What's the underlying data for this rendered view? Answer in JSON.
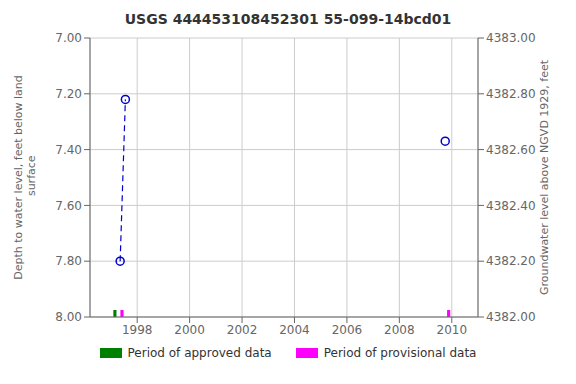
{
  "chart_data": {
    "type": "scatter",
    "title": "USGS 444453108452301 55-099-14bcd01",
    "y_label": "Depth to water level, feet below land\n surface",
    "y2_label": "Groundwater level above NGVD 1929, feet",
    "xlim": [
      1996.2,
      2011.0
    ],
    "xticks": [
      1998,
      2000,
      2002,
      2004,
      2006,
      2008,
      2010
    ],
    "ylim": [
      8.0,
      7.0
    ],
    "yticks": [
      {
        "value": 7.0,
        "label": "7.00"
      },
      {
        "value": 7.2,
        "label": "7.20"
      },
      {
        "value": 7.4,
        "label": "7.40"
      },
      {
        "value": 7.6,
        "label": "7.60"
      },
      {
        "value": 7.8,
        "label": "7.80"
      },
      {
        "value": 8.0,
        "label": "8.00"
      }
    ],
    "y2lim": [
      4382.0,
      4383.0
    ],
    "y2ticks": [
      {
        "value": 4383.0,
        "label": "4383.00"
      },
      {
        "value": 4382.8,
        "label": "4382.80"
      },
      {
        "value": 4382.6,
        "label": "4382.60"
      },
      {
        "value": 4382.4,
        "label": "4382.40"
      },
      {
        "value": 4382.2,
        "label": "4382.20"
      },
      {
        "value": 4382.0,
        "label": "4382.00"
      }
    ],
    "grid": true,
    "series": [
      {
        "type": "scatter",
        "x": [
          1997.35,
          1997.55
        ],
        "values": [
          7.8,
          7.22
        ],
        "color": "#0000cc",
        "marker": "open_circle",
        "line_style": "dashed"
      },
      {
        "type": "scatter",
        "x": [
          2009.75
        ],
        "values": [
          7.37
        ],
        "color": "#0000cc",
        "marker": "open_circle",
        "line_style": "none"
      },
      {
        "type": "span",
        "name": "Period of approved data",
        "x": [
          1997.15
        ],
        "width": [
          0.12
        ],
        "color": "#008000"
      },
      {
        "type": "span",
        "name": "Period of provisional data",
        "x": [
          1997.42,
          2009.88
        ],
        "width": [
          0.12,
          0.12
        ],
        "color": "#ff00ff"
      }
    ]
  }
}
